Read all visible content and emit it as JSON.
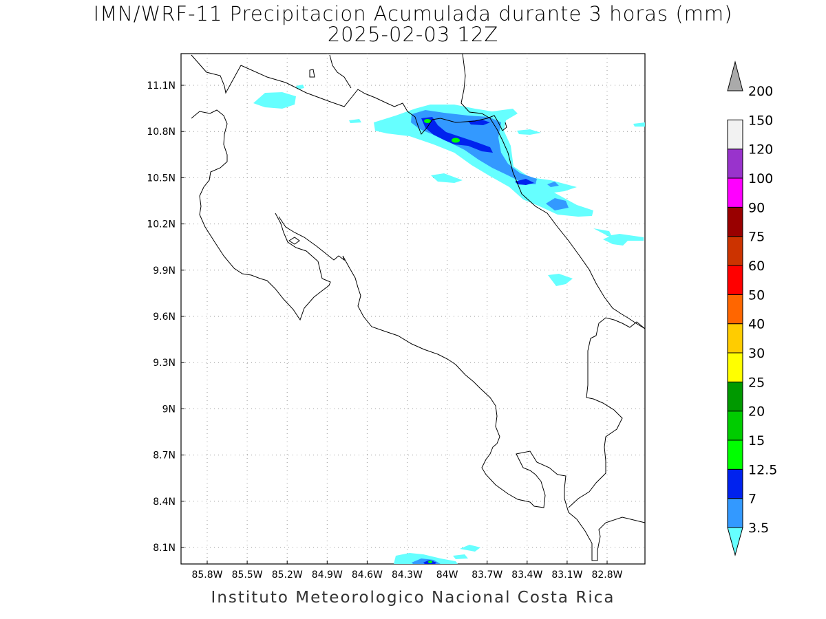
{
  "header": {
    "title": "IMN/WRF-11 Precipitacion Acumulada durante 3 horas (mm)",
    "subtitle": "2025-02-03 12Z"
  },
  "map": {
    "lon_ticks": [
      "85.8W",
      "85.5W",
      "85.2W",
      "84.9W",
      "84.6W",
      "84.3W",
      "84W",
      "83.7W",
      "83.4W",
      "83.1W",
      "82.8W"
    ],
    "lat_ticks": [
      "11.1N",
      "10.8N",
      "10.5N",
      "10.2N",
      "9.9N",
      "9.6N",
      "9.3N",
      "9N",
      "8.7N",
      "8.4N",
      "8.1N"
    ],
    "grid": true,
    "region": "Costa Rica"
  },
  "legend": {
    "labels": [
      "3.5",
      "7",
      "12.5",
      "15",
      "20",
      "25",
      "30",
      "40",
      "50",
      "60",
      "75",
      "90",
      "100",
      "120",
      "150",
      "200"
    ],
    "colors": [
      "#66ffff",
      "#3399ff",
      "#0022ee",
      "#00ff00",
      "#00cc00",
      "#009900",
      "#ffff00",
      "#ffcc00",
      "#ff6600",
      "#ff0000",
      "#cc3300",
      "#990000",
      "#ff00ff",
      "#9933cc",
      "#f2f2f2",
      "#aaaaaa"
    ]
  },
  "footer": "Instituto Meteorologico Nacional Costa Rica"
}
